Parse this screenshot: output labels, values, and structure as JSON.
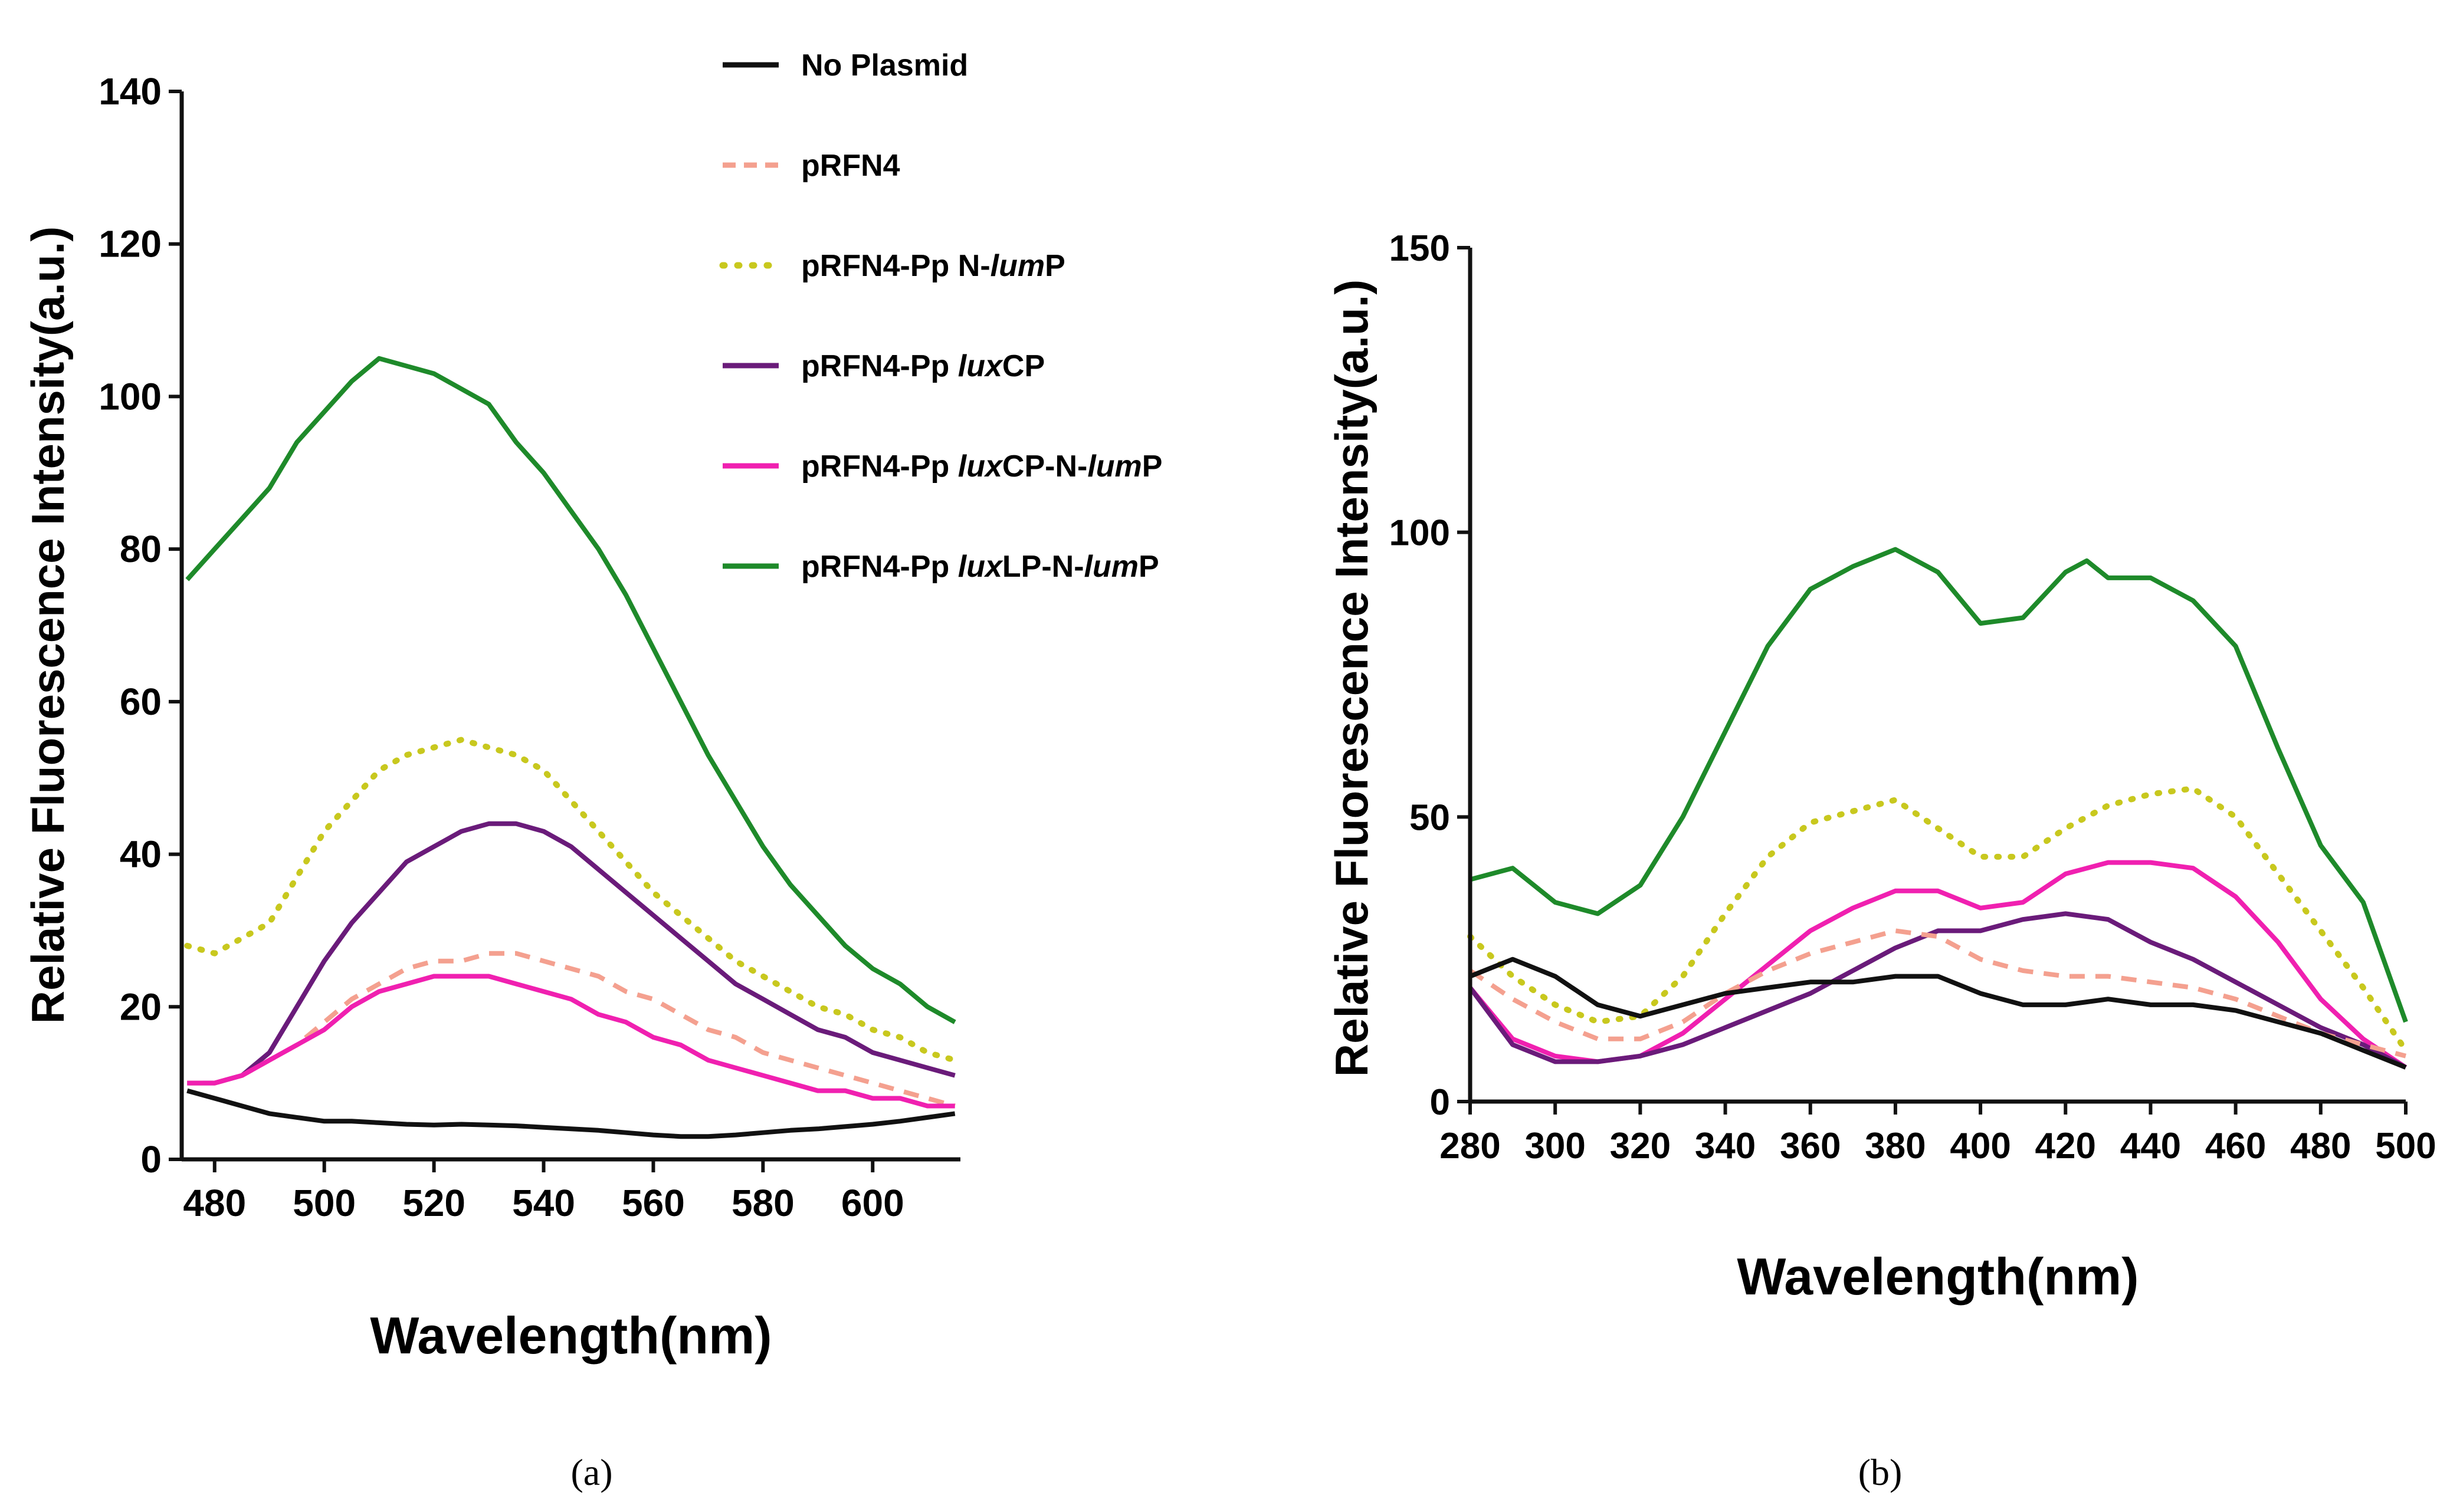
{
  "chart_data": [
    {
      "type": "line",
      "panel_label": "(a)",
      "xlabel": "Wavelength(nm)",
      "ylabel": "Relative Fluorescence Intensity(a.u.)",
      "xlim": [
        474,
        616
      ],
      "ylim": [
        0,
        140
      ],
      "xticks": [
        "480",
        "500",
        "520",
        "540",
        "560",
        "580",
        "600"
      ],
      "xtick_values": [
        480,
        500,
        520,
        540,
        560,
        580,
        600
      ],
      "yticks": [
        "0",
        "20",
        "40",
        "60",
        "80",
        "100",
        "120",
        "140"
      ],
      "ytick_values": [
        0,
        20,
        40,
        60,
        80,
        100,
        120,
        140
      ],
      "legend": [
        {
          "name": "No Plasmid",
          "color": "#111111",
          "style": "solid"
        },
        {
          "name": "pRFN4",
          "color": "#f4a08f",
          "style": "dashed"
        },
        {
          "name": "pRFN4-Pp N-lumP",
          "color": "#c8c81e",
          "style": "dotted"
        },
        {
          "name": "pRFN4-Pp luxCP",
          "color": "#6a1b7a",
          "style": "solid"
        },
        {
          "name": "pRFN4-Pp luxCP-N-lumP",
          "color": "#f020b0",
          "style": "solid"
        },
        {
          "name": "pRFN4-Pp luxLP-N-lumP",
          "color": "#1e8a2a",
          "style": "solid"
        }
      ],
      "series": [
        {
          "name": "pRFN4-Pp luxLP-N-lumP",
          "color": "#1e8a2a",
          "style": "solid",
          "x": [
            475,
            480,
            485,
            490,
            495,
            500,
            505,
            510,
            515,
            520,
            525,
            530,
            535,
            540,
            545,
            550,
            555,
            560,
            565,
            570,
            575,
            580,
            585,
            590,
            595,
            600,
            605,
            610,
            615
          ],
          "y": [
            76,
            80,
            84,
            88,
            94,
            98,
            102,
            105,
            104,
            103,
            101,
            99,
            94,
            90,
            85,
            80,
            74,
            67,
            60,
            53,
            47,
            41,
            36,
            32,
            28,
            25,
            23,
            20,
            18
          ]
        },
        {
          "name": "pRFN4-Pp N-lumP",
          "color": "#c8c81e",
          "style": "dotted",
          "x": [
            475,
            480,
            485,
            490,
            495,
            500,
            505,
            510,
            515,
            520,
            525,
            530,
            535,
            540,
            545,
            550,
            555,
            560,
            565,
            570,
            575,
            580,
            585,
            590,
            595,
            600,
            605,
            610,
            615
          ],
          "y": [
            28,
            27,
            29,
            31,
            37,
            43,
            47,
            51,
            53,
            54,
            55,
            54,
            53,
            51,
            47,
            43,
            39,
            35,
            32,
            29,
            26,
            24,
            22,
            20,
            19,
            17,
            16,
            14,
            13
          ]
        },
        {
          "name": "pRFN4-Pp luxCP",
          "color": "#6a1b7a",
          "style": "solid",
          "x": [
            475,
            480,
            485,
            490,
            495,
            500,
            505,
            510,
            515,
            520,
            525,
            530,
            535,
            540,
            545,
            550,
            555,
            560,
            565,
            570,
            575,
            580,
            585,
            590,
            595,
            600,
            605,
            610,
            615
          ],
          "y": [
            10,
            10,
            11,
            14,
            20,
            26,
            31,
            35,
            39,
            41,
            43,
            44,
            44,
            43,
            41,
            38,
            35,
            32,
            29,
            26,
            23,
            21,
            19,
            17,
            16,
            14,
            13,
            12,
            11
          ]
        },
        {
          "name": "pRFN4",
          "color": "#f4a08f",
          "style": "dashed",
          "x": [
            475,
            480,
            485,
            490,
            495,
            500,
            505,
            510,
            515,
            520,
            525,
            530,
            535,
            540,
            545,
            550,
            555,
            560,
            565,
            570,
            575,
            580,
            585,
            590,
            595,
            600,
            605,
            610,
            615
          ],
          "y": [
            10,
            10,
            11,
            13,
            15,
            18,
            21,
            23,
            25,
            26,
            26,
            27,
            27,
            26,
            25,
            24,
            22,
            21,
            19,
            17,
            16,
            14,
            13,
            12,
            11,
            10,
            9,
            8,
            7
          ]
        },
        {
          "name": "pRFN4-Pp luxCP-N-lumP",
          "color": "#f020b0",
          "style": "solid",
          "x": [
            475,
            480,
            485,
            490,
            495,
            500,
            505,
            510,
            515,
            520,
            525,
            530,
            535,
            540,
            545,
            550,
            555,
            560,
            565,
            570,
            575,
            580,
            585,
            590,
            595,
            600,
            605,
            610,
            615
          ],
          "y": [
            10,
            10,
            11,
            13,
            15,
            17,
            20,
            22,
            23,
            24,
            24,
            24,
            23,
            22,
            21,
            19,
            18,
            16,
            15,
            13,
            12,
            11,
            10,
            9,
            9,
            8,
            8,
            7,
            7
          ]
        },
        {
          "name": "No Plasmid",
          "color": "#111111",
          "style": "solid",
          "x": [
            475,
            480,
            485,
            490,
            495,
            500,
            505,
            510,
            515,
            520,
            525,
            530,
            535,
            540,
            545,
            550,
            555,
            560,
            565,
            570,
            575,
            580,
            585,
            590,
            595,
            600,
            605,
            610,
            615
          ],
          "y": [
            9,
            8,
            7,
            6,
            5.5,
            5,
            5,
            4.8,
            4.6,
            4.5,
            4.6,
            4.5,
            4.4,
            4.2,
            4,
            3.8,
            3.5,
            3.2,
            3,
            3,
            3.2,
            3.5,
            3.8,
            4,
            4.3,
            4.6,
            5,
            5.5,
            6
          ]
        }
      ]
    },
    {
      "type": "line",
      "panel_label": "(b)",
      "xlabel": "Wavelength(nm)",
      "ylabel": "Relative Fluorescence Intensity(a.u.)",
      "xlim": [
        280,
        500
      ],
      "ylim": [
        0,
        150
      ],
      "xticks": [
        "280",
        "300",
        "320",
        "340",
        "360",
        "380",
        "400",
        "420",
        "440",
        "460",
        "480",
        "500"
      ],
      "xtick_values": [
        280,
        300,
        320,
        340,
        360,
        380,
        400,
        420,
        440,
        460,
        480,
        500
      ],
      "yticks": [
        "0",
        "50",
        "100",
        "150"
      ],
      "ytick_values": [
        0,
        50,
        100,
        150
      ],
      "series": [
        {
          "name": "pRFN4-Pp luxLP-N-lumP",
          "color": "#1e8a2a",
          "style": "solid",
          "x": [
            280,
            290,
            300,
            310,
            320,
            330,
            340,
            350,
            360,
            370,
            380,
            390,
            400,
            410,
            420,
            425,
            430,
            440,
            450,
            460,
            470,
            480,
            490,
            500
          ],
          "y": [
            39,
            41,
            35,
            33,
            38,
            50,
            65,
            80,
            90,
            94,
            97,
            93,
            84,
            85,
            93,
            95,
            92,
            92,
            88,
            80,
            62,
            45,
            35,
            14
          ]
        },
        {
          "name": "pRFN4-Pp N-lumP",
          "color": "#c8c81e",
          "style": "dotted",
          "x": [
            280,
            290,
            300,
            310,
            320,
            330,
            340,
            350,
            360,
            370,
            380,
            390,
            400,
            410,
            420,
            430,
            440,
            450,
            460,
            470,
            480,
            490,
            500
          ],
          "y": [
            29,
            22,
            17,
            14,
            15,
            22,
            33,
            43,
            49,
            51,
            53,
            48,
            43,
            43,
            48,
            52,
            54,
            55,
            50,
            40,
            30,
            20,
            9
          ]
        },
        {
          "name": "pRFN4-Pp luxCP-N-lumP",
          "color": "#f020b0",
          "style": "solid",
          "x": [
            280,
            290,
            300,
            310,
            320,
            330,
            340,
            350,
            360,
            370,
            380,
            390,
            400,
            410,
            420,
            430,
            440,
            450,
            460,
            470,
            480,
            490,
            500
          ],
          "y": [
            20,
            11,
            8,
            7,
            8,
            12,
            18,
            24,
            30,
            34,
            37,
            37,
            34,
            35,
            40,
            42,
            42,
            41,
            36,
            28,
            18,
            11,
            6
          ]
        },
        {
          "name": "pRFN4-Pp luxCP",
          "color": "#6a1b7a",
          "style": "solid",
          "x": [
            280,
            290,
            300,
            310,
            320,
            330,
            340,
            350,
            360,
            370,
            380,
            390,
            400,
            410,
            420,
            430,
            440,
            450,
            460,
            470,
            480,
            490,
            500
          ],
          "y": [
            20,
            10,
            7,
            7,
            8,
            10,
            13,
            16,
            19,
            23,
            27,
            30,
            30,
            32,
            33,
            32,
            28,
            25,
            21,
            17,
            13,
            10,
            6
          ]
        },
        {
          "name": "pRFN4",
          "color": "#f4a08f",
          "style": "dashed",
          "x": [
            280,
            290,
            300,
            310,
            320,
            330,
            340,
            350,
            360,
            370,
            380,
            390,
            400,
            410,
            420,
            430,
            440,
            450,
            460,
            470,
            480,
            490,
            500
          ],
          "y": [
            23,
            18,
            14,
            11,
            11,
            14,
            19,
            23,
            26,
            28,
            30,
            29,
            25,
            23,
            22,
            22,
            21,
            20,
            18,
            15,
            12,
            10,
            8
          ]
        },
        {
          "name": "No Plasmid",
          "color": "#111111",
          "style": "solid",
          "x": [
            280,
            290,
            300,
            310,
            320,
            330,
            340,
            350,
            360,
            370,
            380,
            390,
            400,
            410,
            420,
            430,
            440,
            450,
            460,
            470,
            480,
            490,
            500
          ],
          "y": [
            22,
            25,
            22,
            17,
            15,
            17,
            19,
            20,
            21,
            21,
            22,
            22,
            19,
            17,
            17,
            18,
            17,
            17,
            16,
            14,
            12,
            9,
            6
          ]
        }
      ]
    }
  ]
}
